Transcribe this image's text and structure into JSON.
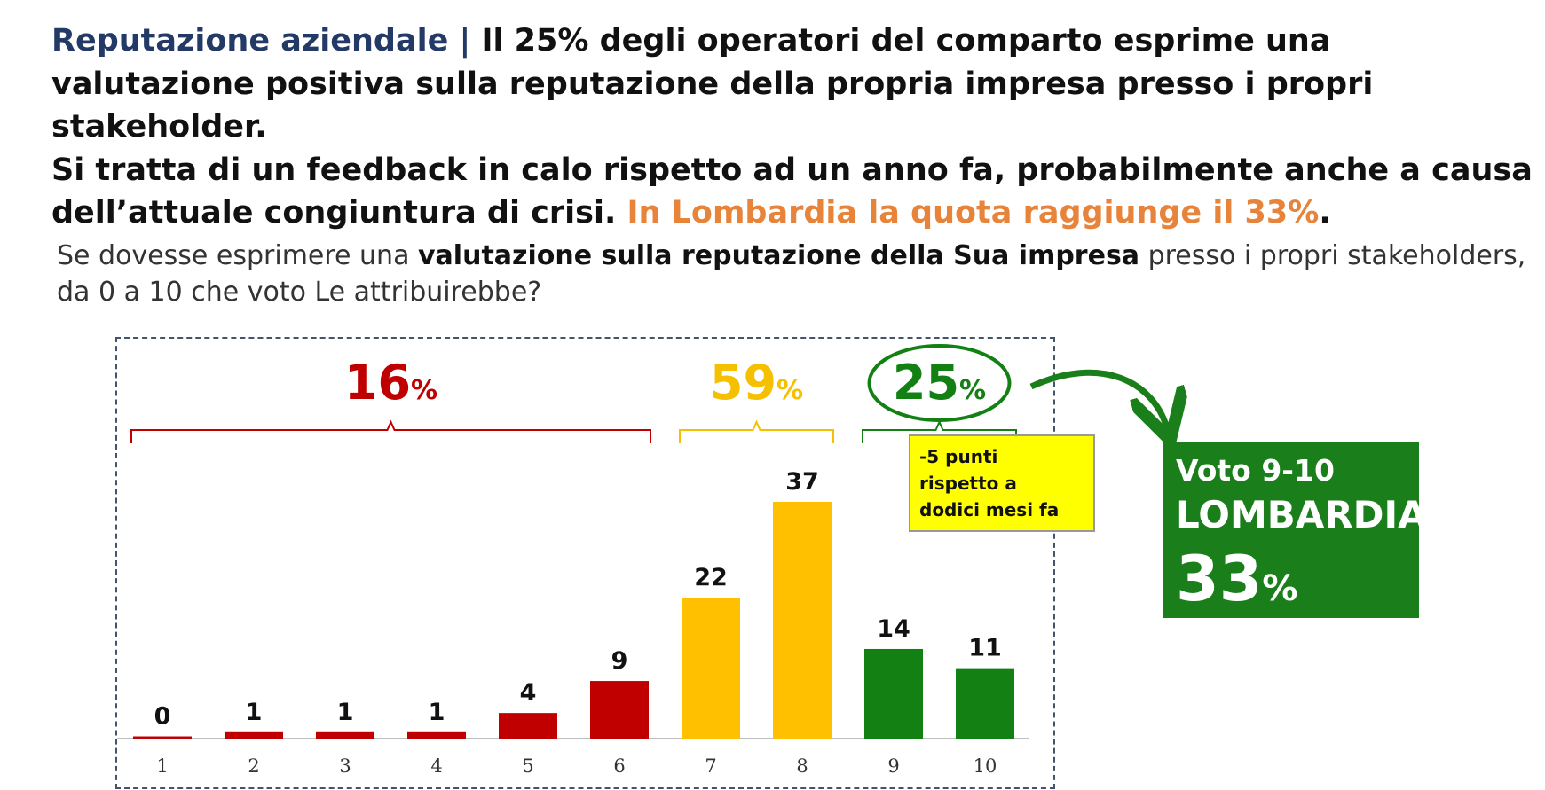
{
  "title": {
    "lead": "Reputazione aziendale |",
    "line1": " Il 25% degli operatori del comparto esprime una valutazione positiva sulla reputazione della propria impresa presso i propri stakeholder.",
    "line2": "Si tratta di un feedback in calo rispetto ad un anno fa, probabilmente anche a causa dell’attuale congiuntura di crisi.",
    "highlight": "In Lombardia la quota raggiunge il 33%",
    "end": "."
  },
  "question": {
    "pre": "Se dovesse esprimere una ",
    "bold": "valutazione sulla reputazione della Sua impresa",
    "post": " presso i propri stakeholders, da 0 a 10 che voto Le attribuirebbe?"
  },
  "chart_data": {
    "type": "bar",
    "categories": [
      "1",
      "2",
      "3",
      "4",
      "5",
      "6",
      "7",
      "8",
      "9",
      "10"
    ],
    "values": [
      0,
      1,
      1,
      1,
      4,
      9,
      22,
      37,
      14,
      11
    ],
    "bar_colors": [
      "#c00000",
      "#c00000",
      "#c00000",
      "#c00000",
      "#c00000",
      "#c00000",
      "#ffc000",
      "#ffc000",
      "#128012",
      "#128012"
    ],
    "groups": [
      {
        "value": "16",
        "unit": "%",
        "from": 0,
        "to": 5,
        "color": "#c00000"
      },
      {
        "value": "59",
        "unit": "%",
        "from": 6,
        "to": 7,
        "color": "#f5c000"
      },
      {
        "value": "25",
        "unit": "%",
        "from": 8,
        "to": 9,
        "color": "#128012",
        "circled": true
      }
    ],
    "ylim": [
      0,
      40
    ],
    "grid": false,
    "legend": "none"
  },
  "note": {
    "text": "-5 punti\nrispetto a\ndodici mesi fa"
  },
  "lombardia": {
    "line1": "Voto 9-10",
    "line2": "LOMBARDIA",
    "value": "33",
    "unit": "%"
  },
  "colors": {
    "title_blue": "#233a66",
    "highlight_orange": "#e8833a",
    "green_box": "#1a7f1a",
    "note_yellow": "#ffff00"
  }
}
